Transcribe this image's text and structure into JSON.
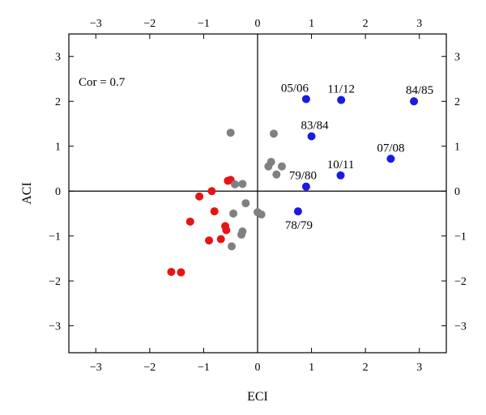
{
  "chart_data": {
    "type": "scatter",
    "xlabel": "ECI",
    "ylabel": "ACI",
    "xlim": [
      -3.5,
      3.5
    ],
    "ylim": [
      -3.6,
      3.5
    ],
    "xticks": [
      -3,
      -2,
      -1,
      0,
      1,
      2,
      3
    ],
    "yticks": [
      -3,
      -2,
      -1,
      0,
      1,
      2,
      3
    ],
    "grid": false,
    "zero_lines": true,
    "annotation": "Cor = 0.7",
    "colors": {
      "blue": "#1a1ae6",
      "red": "#e61414",
      "gray": "#808080"
    },
    "series": [
      {
        "color_key": "blue",
        "points": [
          {
            "x": 0.9,
            "y": 2.05,
            "label": "05/06"
          },
          {
            "x": 1.55,
            "y": 2.03,
            "label": "11/12"
          },
          {
            "x": 2.9,
            "y": 2.0,
            "label": "84/85"
          },
          {
            "x": 1.0,
            "y": 1.22,
            "label": "83/84"
          },
          {
            "x": 2.47,
            "y": 0.72,
            "label": "07/08"
          },
          {
            "x": 1.54,
            "y": 0.35,
            "label": "10/11"
          },
          {
            "x": 0.9,
            "y": 0.1,
            "label": "79/80"
          },
          {
            "x": 0.75,
            "y": -0.45,
            "label": "78/79"
          }
        ]
      },
      {
        "color_key": "red",
        "points": [
          {
            "x": -0.55,
            "y": 0.23
          },
          {
            "x": -0.5,
            "y": 0.25
          },
          {
            "x": -0.85,
            "y": 0.0
          },
          {
            "x": -1.08,
            "y": -0.12
          },
          {
            "x": -0.8,
            "y": -0.45
          },
          {
            "x": -1.25,
            "y": -0.68
          },
          {
            "x": -0.6,
            "y": -0.78
          },
          {
            "x": -0.58,
            "y": -0.87
          },
          {
            "x": -0.9,
            "y": -1.1
          },
          {
            "x": -0.68,
            "y": -1.07
          },
          {
            "x": -1.6,
            "y": -1.8
          },
          {
            "x": -1.42,
            "y": -1.81
          }
        ]
      },
      {
        "color_key": "gray",
        "points": [
          {
            "x": -0.5,
            "y": 1.3
          },
          {
            "x": 0.3,
            "y": 1.28
          },
          {
            "x": 0.25,
            "y": 0.65
          },
          {
            "x": 0.2,
            "y": 0.55
          },
          {
            "x": 0.45,
            "y": 0.55
          },
          {
            "x": 0.35,
            "y": 0.37
          },
          {
            "x": -0.42,
            "y": 0.15
          },
          {
            "x": -0.28,
            "y": 0.16
          },
          {
            "x": -0.22,
            "y": -0.27
          },
          {
            "x": -0.45,
            "y": -0.5
          },
          {
            "x": 0.0,
            "y": -0.47
          },
          {
            "x": 0.07,
            "y": -0.52
          },
          {
            "x": -0.28,
            "y": -0.9
          },
          {
            "x": -0.3,
            "y": -0.97
          },
          {
            "x": -0.48,
            "y": -1.23
          }
        ]
      }
    ]
  }
}
